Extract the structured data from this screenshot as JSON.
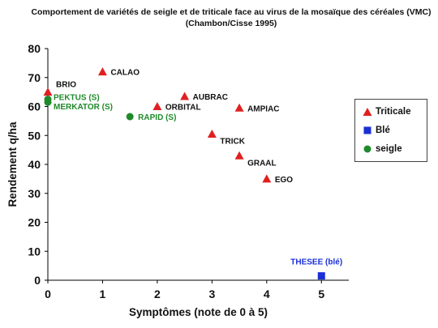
{
  "header": {
    "title_line1": "Comportement de variétés de seigle et de triticale face au virus de la mosaïque des céréales (VMC)",
    "title_line2": "(Chambon/Cisse 1995)"
  },
  "legend": {
    "items": [
      {
        "label": "Triticale",
        "marker": "triangle",
        "color": "#e02020"
      },
      {
        "label": "Blé",
        "marker": "square",
        "color": "#1a2fd6"
      },
      {
        "label": "seigle",
        "marker": "circle",
        "color": "#1f8a2a"
      }
    ]
  },
  "chart_data": {
    "type": "scatter",
    "xlabel": "Symptômes  (note de 0 à 5)",
    "ylabel": "Rendement q/ha",
    "xlim": [
      0,
      5.5
    ],
    "ylim": [
      0,
      80
    ],
    "xticks": [
      0,
      1,
      2,
      3,
      4,
      5
    ],
    "yticks": [
      0,
      10,
      20,
      30,
      40,
      50,
      60,
      70,
      80
    ],
    "grid": false,
    "legend_position": "right",
    "series": [
      {
        "name": "Triticale",
        "marker": "triangle",
        "color": "#e02020",
        "label_color": "#111111",
        "points": [
          {
            "label": "BRIO",
            "x": 0,
            "y": 65
          },
          {
            "label": "CALAO",
            "x": 1,
            "y": 72
          },
          {
            "label": "ORBITAL",
            "x": 2,
            "y": 60
          },
          {
            "label": "AUBRAC",
            "x": 2.5,
            "y": 63.5
          },
          {
            "label": "AMPIAC",
            "x": 3.5,
            "y": 59.5
          },
          {
            "label": "TRICK",
            "x": 3,
            "y": 50.5
          },
          {
            "label": "GRAAL",
            "x": 3.5,
            "y": 43
          },
          {
            "label": "EGO",
            "x": 4,
            "y": 35
          }
        ]
      },
      {
        "name": "Blé",
        "marker": "square",
        "color": "#1a2fd6",
        "label_color": "#1a2fd6",
        "points": [
          {
            "label": "THESEE  (blé)",
            "x": 5,
            "y": 1.5
          }
        ]
      },
      {
        "name": "seigle",
        "marker": "circle",
        "color": "#1f8a2a",
        "label_color": "#1f8a2a",
        "points": [
          {
            "label": "PEKTUS (S)",
            "x": 0,
            "y": 62.5
          },
          {
            "label": "MERKATOR (S)",
            "x": 0,
            "y": 61.5
          },
          {
            "label": "RAPID  (S)",
            "x": 1.5,
            "y": 56.5
          }
        ]
      }
    ]
  }
}
